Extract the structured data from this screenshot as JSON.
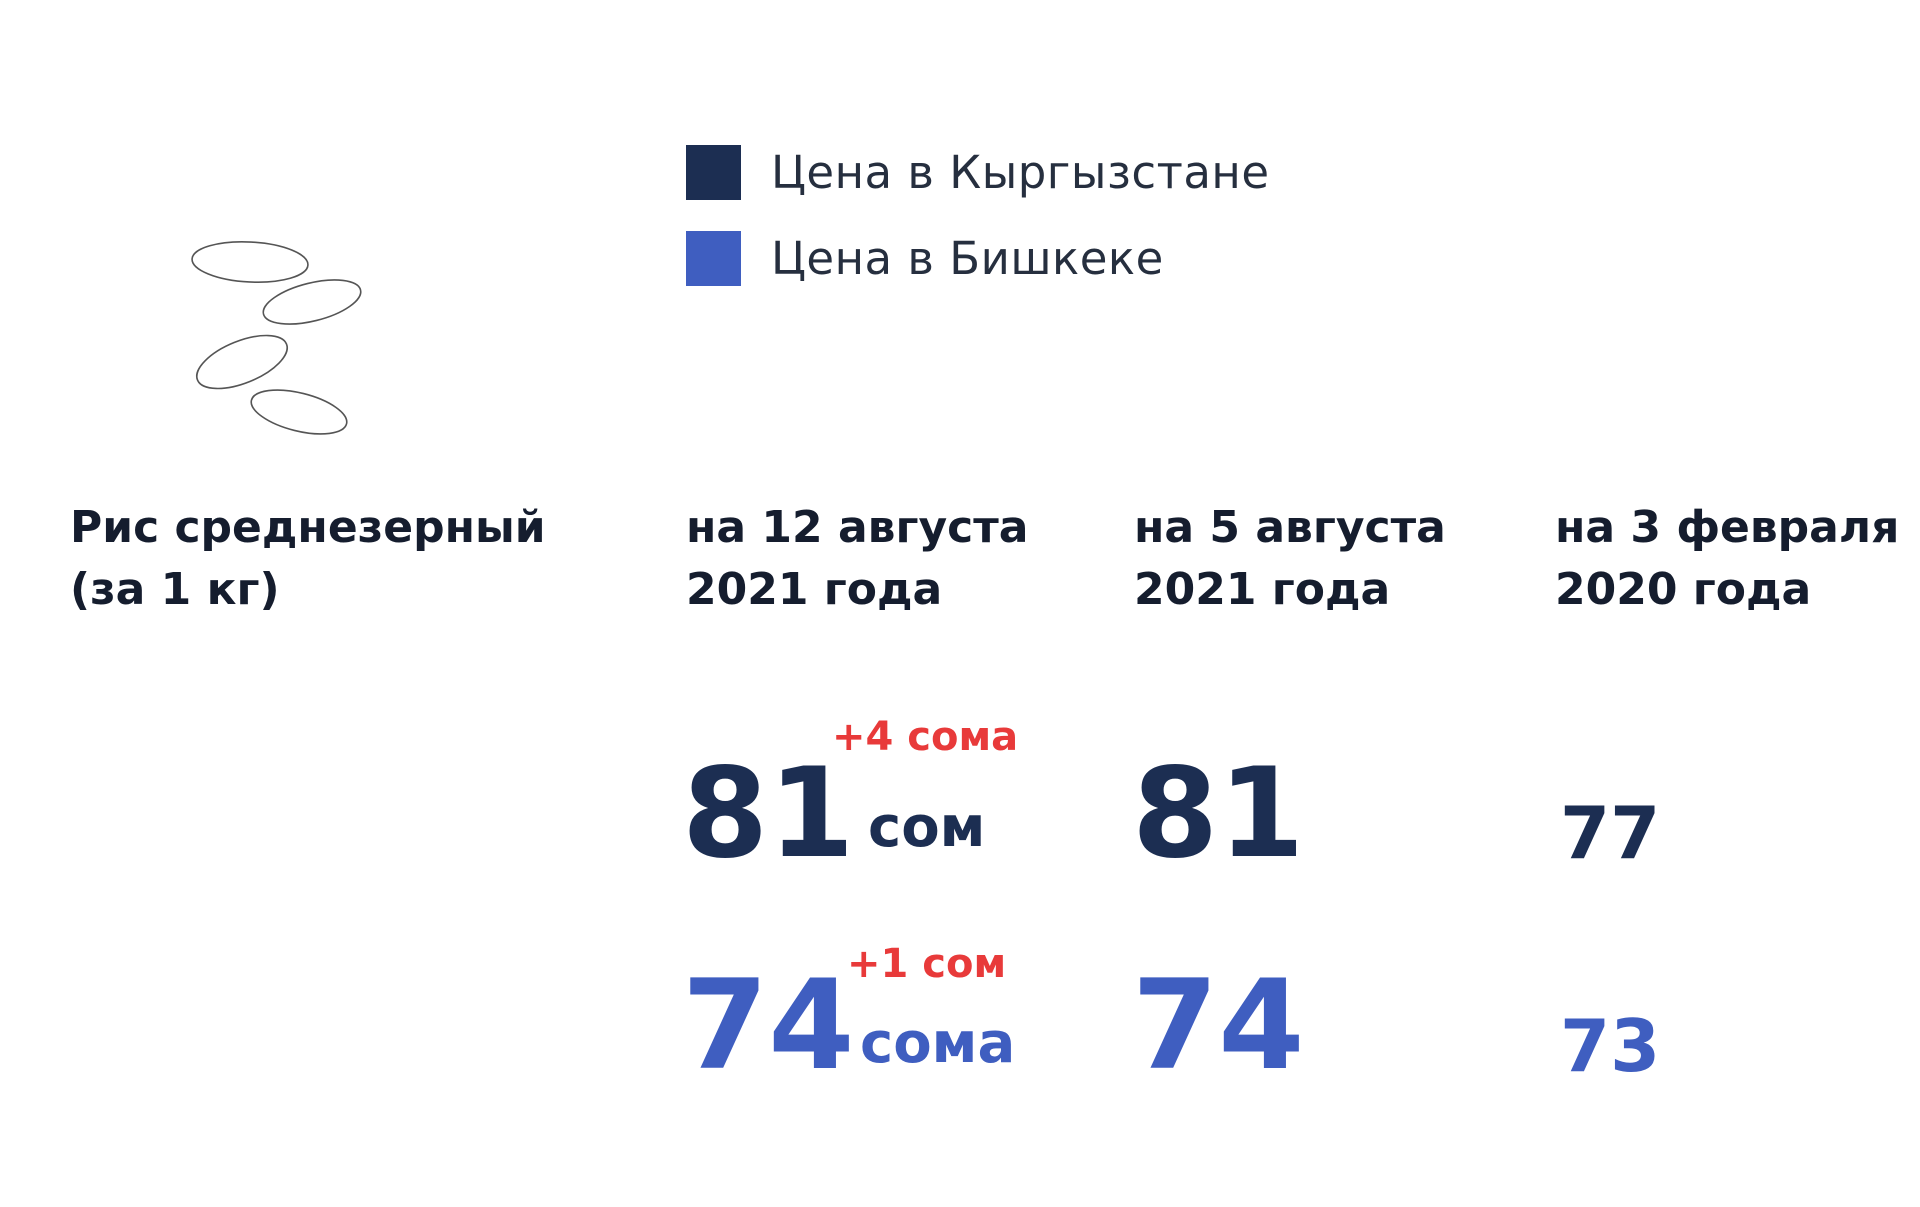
{
  "colors": {
    "kyrgyzstan": "#1c2e52",
    "bishkek": "#3f5ec0",
    "delta": "#e83a3a"
  },
  "icon": "rice-grains-icon",
  "chart_data": {
    "type": "table",
    "product": {
      "line1": "Рис среднезерный",
      "line2": "(за 1 кг)"
    },
    "legend": [
      {
        "name": "Цена в Кыргызстане",
        "color": "#1c2e52"
      },
      {
        "name": "Цена в Бишкеке",
        "color": "#3f5ec0"
      }
    ],
    "columns": [
      {
        "line1": "на 12 августа",
        "line2": "2021 года"
      },
      {
        "line1": "на 5 августа",
        "line2": "2021 года"
      },
      {
        "line1": "на 3 февраля",
        "line2": "2020 года"
      }
    ],
    "series": [
      {
        "name": "Цена в Кыргызстане",
        "values": [
          81,
          81,
          77
        ],
        "unit": "сом",
        "change": "+4 сома"
      },
      {
        "name": "Цена в Бишкеке",
        "values": [
          74,
          74,
          73
        ],
        "unit": "сома",
        "change": "+1 сом"
      }
    ]
  }
}
